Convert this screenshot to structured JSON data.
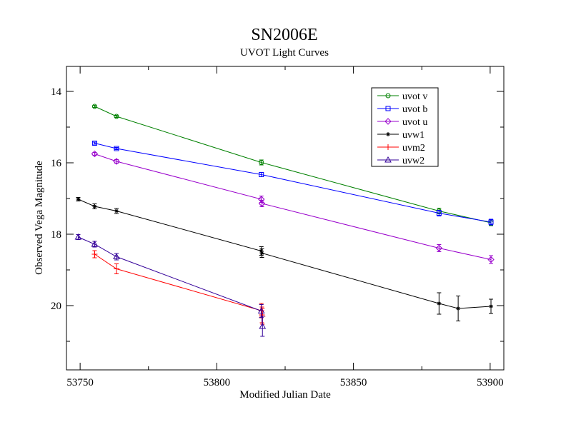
{
  "chart_data": {
    "type": "line",
    "title": "SN2006E",
    "subtitle": "UVOT Light Curves",
    "xlabel": "Modified Julian Date",
    "ylabel": "Observed Vega Magnitude",
    "xlim": [
      53745,
      53905
    ],
    "ylim": [
      21.8,
      13.3
    ],
    "y_inverted": true,
    "x_ticks": [
      53750,
      53800,
      53850,
      53900
    ],
    "y_ticks": [
      14,
      16,
      18,
      20
    ],
    "grid": false,
    "legend_position": "top-right",
    "series": [
      {
        "name": "uvot v",
        "color": "#008000",
        "marker": "circle",
        "x": [
          53755.3,
          53763.3,
          53816.3,
          53881.3,
          53900.3
        ],
        "y": [
          14.42,
          14.7,
          15.99,
          17.35,
          17.68
        ],
        "err": [
          0.03,
          0.03,
          0.07,
          0.08,
          0.08
        ]
      },
      {
        "name": "uvot b",
        "color": "#0000ff",
        "marker": "square",
        "x": [
          53755.3,
          53763.3,
          53816.3,
          53881.3,
          53900.3
        ],
        "y": [
          15.45,
          15.6,
          16.33,
          17.41,
          17.66
        ],
        "err": [
          0.03,
          0.03,
          0.06,
          0.08,
          0.08
        ]
      },
      {
        "name": "uvot u",
        "color": "#9900cc",
        "marker": "diamond",
        "x": [
          53755.3,
          53763.3,
          53816.3,
          53816.5,
          53881.3,
          53900.3
        ],
        "y": [
          15.75,
          15.96,
          17.02,
          17.14,
          18.39,
          18.71
        ],
        "err": [
          0.04,
          0.05,
          0.09,
          0.09,
          0.1,
          0.11
        ]
      },
      {
        "name": "uvw1",
        "color": "#000000",
        "marker": "star",
        "x": [
          53749.3,
          53755.3,
          53763.3,
          53816.3,
          53816.5,
          53881.3,
          53888.3,
          53900.3
        ],
        "y": [
          17.02,
          17.22,
          17.35,
          18.47,
          18.53,
          19.94,
          20.08,
          20.02
        ],
        "err": [
          0.05,
          0.07,
          0.07,
          0.12,
          0.12,
          0.3,
          0.35,
          0.2
        ]
      },
      {
        "name": "uvm2",
        "color": "#ff0000",
        "marker": "plus",
        "x": [
          53755.3,
          53763.3,
          53816.3,
          53816.5,
          53816.7
        ],
        "y": [
          18.56,
          18.97,
          20.14,
          20.26,
          20.3
        ],
        "err": [
          0.1,
          0.14,
          0.2,
          0.22,
          0.22
        ]
      },
      {
        "name": "uvw2",
        "color": "#330099",
        "marker": "triangle",
        "x": [
          53749.3,
          53755.3,
          53763.3,
          53816.3,
          53816.7
        ],
        "y": [
          18.08,
          18.28,
          18.63,
          20.15,
          20.58
        ],
        "err": [
          0.07,
          0.08,
          0.09,
          0.18,
          0.28
        ]
      }
    ]
  }
}
